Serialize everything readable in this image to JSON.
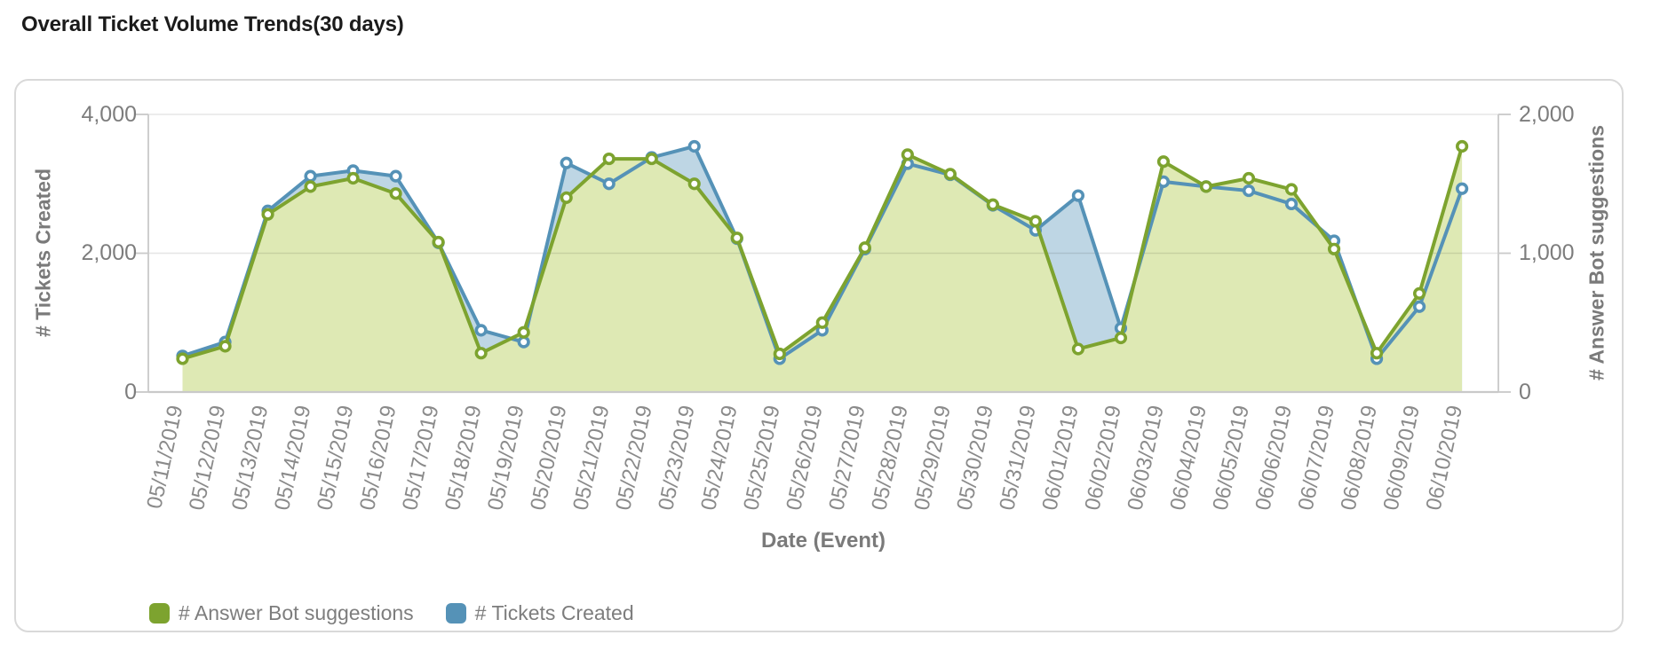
{
  "page": {
    "title": "Overall Ticket Volume Trends(30 days)"
  },
  "colors": {
    "green_line": "#7da32f",
    "green_fill": "#dfe9b2",
    "blue_line": "#5592b7",
    "blue_fill": "#bcd9ec",
    "gridline": "#e6e6e6",
    "axis_line": "#c9c9c9",
    "tick_text": "#7d7d7d",
    "date_text": "#8a8a8a",
    "title_text": "#1b1b1b"
  },
  "chart_data": {
    "type": "line",
    "title": "Overall Ticket Volume Trends(30 days)",
    "xlabel": "Date (Event)",
    "grid": "horizontal",
    "legend_position": "bottom-left",
    "x": [
      "05/11/2019",
      "05/12/2019",
      "05/13/2019",
      "05/14/2019",
      "05/15/2019",
      "05/16/2019",
      "05/17/2019",
      "05/18/2019",
      "05/19/2019",
      "05/20/2019",
      "05/21/2019",
      "05/22/2019",
      "05/23/2019",
      "05/24/2019",
      "05/25/2019",
      "05/26/2019",
      "05/27/2019",
      "05/28/2019",
      "05/29/2019",
      "05/30/2019",
      "05/31/2019",
      "06/01/2019",
      "06/02/2019",
      "06/03/2019",
      "06/04/2019",
      "06/05/2019",
      "06/06/2019",
      "06/07/2019",
      "06/08/2019",
      "06/09/2019",
      "06/10/2019"
    ],
    "left_axis": {
      "label": "# Tickets Created",
      "max": 4000,
      "ticks": [
        "4,000",
        "2,000",
        "0"
      ]
    },
    "right_axis": {
      "label": "# Answer Bot suggestions",
      "max": 2000,
      "ticks": [
        "2,000",
        "1,000",
        "0"
      ]
    },
    "series": [
      {
        "name": "# Answer Bot suggestions",
        "axis": "right",
        "color": "#7da32f",
        "values": [
          240,
          330,
          1280,
          1480,
          1540,
          1430,
          1080,
          280,
          430,
          1400,
          1680,
          1680,
          1500,
          1110,
          275,
          500,
          1040,
          1710,
          1570,
          1350,
          1230,
          310,
          390,
          1660,
          1480,
          1540,
          1460,
          1030,
          280,
          710,
          1770
        ]
      },
      {
        "name": "# Tickets Created",
        "axis": "left",
        "color": "#5592b7",
        "values": [
          520,
          720,
          2610,
          3110,
          3190,
          3110,
          2150,
          890,
          720,
          3300,
          3000,
          3380,
          3540,
          2210,
          480,
          890,
          2060,
          3290,
          3130,
          2690,
          2330,
          2830,
          920,
          3030,
          2960,
          2900,
          2710,
          2180,
          480,
          1230,
          2930
        ]
      }
    ]
  }
}
